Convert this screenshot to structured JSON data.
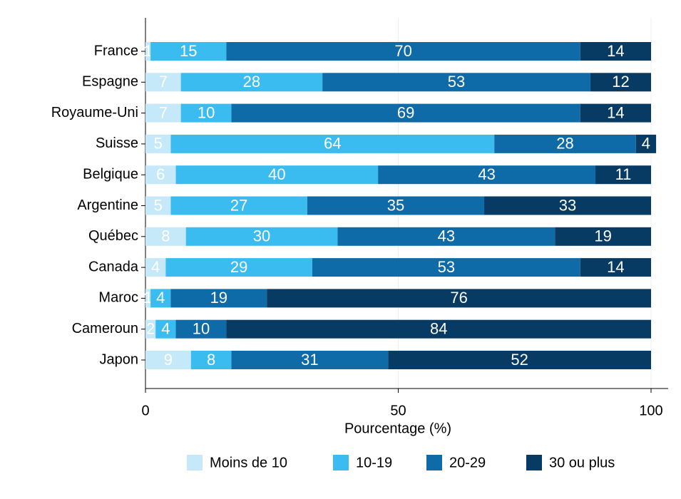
{
  "chart_data": {
    "type": "stacked-bar-horizontal",
    "xlabel": "Pourcentage (%)",
    "categories": [
      "France",
      "Espagne",
      "Royaume-Uni",
      "Suisse",
      "Belgique",
      "Argentine",
      "Québec",
      "Canada",
      "Maroc",
      "Cameroun",
      "Japon"
    ],
    "series": [
      {
        "name": "Moins de 10",
        "color": "#c6e9f9",
        "values": [
          1,
          7,
          7,
          5,
          6,
          5,
          8,
          4,
          1,
          2,
          9
        ]
      },
      {
        "name": "10-19",
        "color": "#3bbcf0",
        "values": [
          15,
          28,
          10,
          64,
          40,
          27,
          30,
          29,
          4,
          4,
          8
        ]
      },
      {
        "name": "20-29",
        "color": "#0f6aa8",
        "values": [
          70,
          53,
          69,
          28,
          43,
          35,
          43,
          53,
          19,
          10,
          31
        ]
      },
      {
        "name": "30 ou plus",
        "color": "#073b63",
        "values": [
          14,
          12,
          14,
          4,
          11,
          33,
          19,
          14,
          76,
          84,
          52
        ]
      }
    ],
    "xlim": [
      0,
      100
    ],
    "xticks": [
      0,
      50,
      100
    ],
    "grid": true,
    "legend": "bottom"
  }
}
